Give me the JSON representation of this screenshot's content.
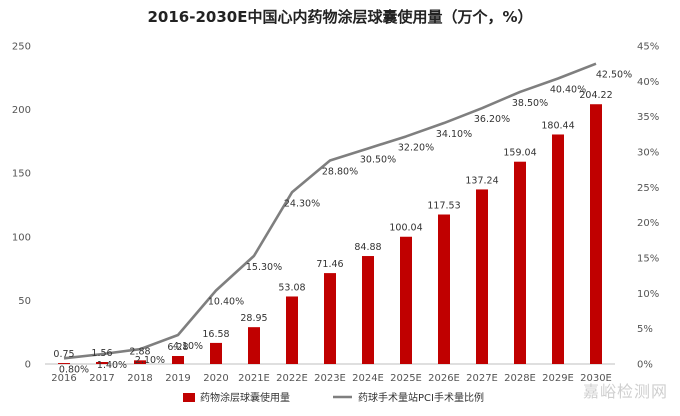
{
  "chart_data": {
    "type": "bar+line",
    "title": "2016-2030E中国心内药物涂层球囊使用量（万个，%）",
    "categories": [
      "2016",
      "2017",
      "2018",
      "2019",
      "2020",
      "2021E",
      "2022E",
      "2023E",
      "2024E",
      "2025E",
      "2026E",
      "2027E",
      "2028E",
      "2029E",
      "2030E"
    ],
    "series": [
      {
        "name": "药物涂层球囊使用量",
        "type": "bar",
        "axis": "left",
        "color": "#c00000",
        "values": [
          0.75,
          1.56,
          2.88,
          6.28,
          16.58,
          28.95,
          53.08,
          71.46,
          84.88,
          100.04,
          117.53,
          137.24,
          159.04,
          180.44,
          204.22
        ],
        "labels": [
          "0.75",
          "1.56",
          "2.88",
          "6.28",
          "16.58",
          "28.95",
          "53.08",
          "71.46",
          "84.88",
          "100.04",
          "117.53",
          "137.24",
          "159.04",
          "180.44",
          "204.22"
        ]
      },
      {
        "name": "药球手术量站PCI手术量比例",
        "type": "line",
        "axis": "right",
        "color": "#7f7f7f",
        "values": [
          0.8,
          1.4,
          2.1,
          4.1,
          10.4,
          15.3,
          24.3,
          28.8,
          30.5,
          32.2,
          34.1,
          36.2,
          38.5,
          40.4,
          42.5
        ],
        "labels": [
          "0.80%",
          "1.40%",
          "2.10%",
          "4.10%",
          "10.40%",
          "15.30%",
          "24.30%",
          "28.80%",
          "30.50%",
          "32.20%",
          "34.10%",
          "36.20%",
          "38.50%",
          "40.40%",
          "42.50%"
        ]
      }
    ],
    "y_left": {
      "min": 0,
      "max": 250,
      "ticks": [
        "0",
        "50",
        "100",
        "150",
        "200",
        "250"
      ]
    },
    "y_right": {
      "min": 0,
      "max": 45,
      "ticks": [
        "0%",
        "5%",
        "10%",
        "15%",
        "20%",
        "25%",
        "30%",
        "35%",
        "40%",
        "45%"
      ]
    },
    "legend_position": "bottom-center",
    "grid": false
  },
  "watermark": "嘉峪检测网"
}
